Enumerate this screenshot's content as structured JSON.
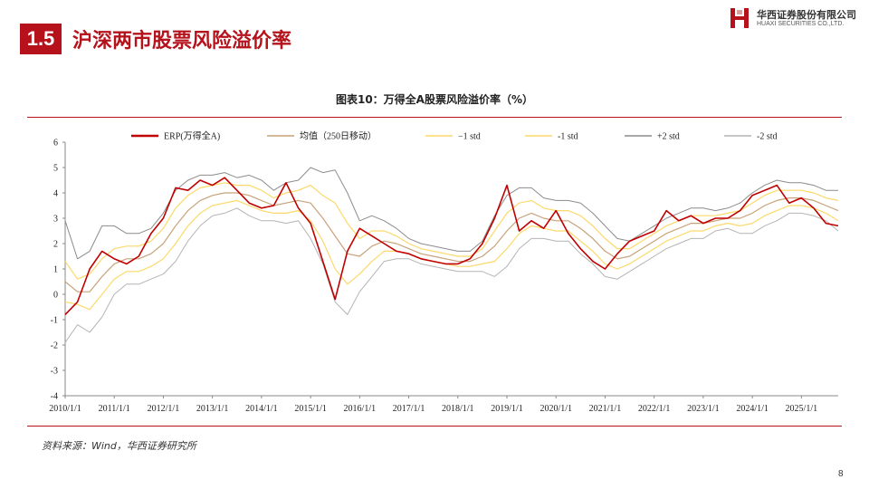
{
  "header": {
    "section_number": "1.5",
    "section_title": "沪深两市股票风险溢价率",
    "logo_cn": "华西证券股份有限公司",
    "logo_en": "HUAXI SECURITIES CO.,LTD.",
    "brand_color": "#b5121b"
  },
  "chart_caption": "图表10：万得全A股票风险溢价率（%）",
  "source_note": "资料来源：Wind，华西证券研究所",
  "page_number": "8",
  "chart_data": {
    "type": "line",
    "title": "图表10：万得全A股票风险溢价率（%）",
    "ylim": [
      -4,
      6
    ],
    "yticks": [
      "-4",
      "-3",
      "-2",
      "-1",
      "0",
      "1",
      "2",
      "3",
      "4",
      "5",
      "6"
    ],
    "xticks": [
      "2010/1/1",
      "2011/1/1",
      "2012/1/1",
      "2013/1/1",
      "2014/1/1",
      "2015/1/1",
      "2016/1/1",
      "2017/1/1",
      "2018/1/1",
      "2019/1/1",
      "2020/1/1",
      "2021/1/1",
      "2022/1/1",
      "2023/1/1",
      "2024/1/1",
      "2025/1/1"
    ],
    "x_range": [
      "2010/1/1",
      "2025/10/1"
    ],
    "grid": false,
    "legend_position": "top",
    "x": [
      2010.0,
      2010.25,
      2010.5,
      2010.75,
      2011.0,
      2011.25,
      2011.5,
      2011.75,
      2012.0,
      2012.25,
      2012.5,
      2012.75,
      2013.0,
      2013.25,
      2013.5,
      2013.75,
      2014.0,
      2014.25,
      2014.5,
      2014.75,
      2015.0,
      2015.25,
      2015.5,
      2015.75,
      2016.0,
      2016.25,
      2016.5,
      2016.75,
      2017.0,
      2017.25,
      2017.5,
      2017.75,
      2018.0,
      2018.25,
      2018.5,
      2018.75,
      2019.0,
      2019.25,
      2019.5,
      2019.75,
      2020.0,
      2020.25,
      2020.5,
      2020.75,
      2021.0,
      2021.25,
      2021.5,
      2021.75,
      2022.0,
      2022.25,
      2022.5,
      2022.75,
      2023.0,
      2023.25,
      2023.5,
      2023.75,
      2024.0,
      2024.25,
      2024.5,
      2024.75,
      2025.0,
      2025.25,
      2025.5,
      2025.75
    ],
    "series": [
      {
        "name": "ERP(万得全A)",
        "color": "#c00000",
        "width": 1.6,
        "values": [
          -0.8,
          -0.3,
          1.0,
          1.7,
          1.4,
          1.2,
          1.5,
          2.4,
          3.0,
          4.2,
          4.1,
          4.5,
          4.3,
          4.6,
          4.1,
          3.6,
          3.4,
          3.5,
          4.4,
          3.4,
          2.8,
          1.3,
          -0.2,
          1.7,
          2.6,
          2.3,
          2.0,
          1.7,
          1.6,
          1.4,
          1.3,
          1.2,
          1.2,
          1.4,
          2.0,
          3.0,
          4.3,
          2.5,
          2.9,
          2.6,
          3.3,
          2.4,
          1.8,
          1.3,
          1.0,
          1.6,
          2.1,
          2.3,
          2.5,
          3.3,
          2.9,
          3.1,
          2.8,
          3.0,
          3.0,
          3.3,
          3.9,
          4.1,
          4.3,
          3.6,
          3.8,
          3.4,
          2.8,
          2.7
        ]
      },
      {
        "name": "均值（250日移动）",
        "color": "#c8a27a",
        "width": 1.2,
        "values": [
          0.5,
          0.1,
          0.1,
          0.7,
          1.2,
          1.4,
          1.4,
          1.6,
          2.0,
          2.7,
          3.3,
          3.7,
          3.9,
          4.0,
          4.0,
          3.9,
          3.7,
          3.5,
          3.6,
          3.7,
          3.6,
          3.0,
          2.3,
          1.6,
          1.5,
          1.9,
          2.1,
          2.0,
          1.8,
          1.6,
          1.5,
          1.4,
          1.3,
          1.3,
          1.5,
          1.9,
          2.5,
          3.0,
          3.2,
          3.0,
          2.9,
          2.9,
          2.6,
          2.2,
          1.7,
          1.4,
          1.5,
          1.8,
          2.1,
          2.4,
          2.6,
          2.8,
          2.8,
          2.9,
          3.0,
          3.0,
          3.2,
          3.5,
          3.7,
          3.8,
          3.8,
          3.7,
          3.5,
          3.3
        ]
      },
      {
        "name": "−1 std",
        "color": "#fcd96a",
        "width": 1.2,
        "values": [
          1.3,
          0.6,
          0.8,
          1.4,
          1.8,
          1.9,
          1.9,
          2.1,
          2.6,
          3.4,
          3.9,
          4.2,
          4.3,
          4.4,
          4.3,
          4.3,
          4.1,
          3.8,
          4.0,
          4.1,
          4.3,
          3.9,
          3.6,
          2.8,
          2.2,
          2.5,
          2.5,
          2.3,
          2.0,
          1.8,
          1.7,
          1.6,
          1.5,
          1.5,
          1.8,
          2.5,
          3.2,
          3.6,
          3.7,
          3.4,
          3.3,
          3.3,
          3.1,
          2.7,
          2.2,
          1.8,
          1.8,
          2.1,
          2.4,
          2.7,
          2.9,
          3.1,
          3.1,
          3.1,
          3.2,
          3.3,
          3.6,
          3.9,
          4.1,
          4.1,
          4.1,
          4.0,
          3.8,
          3.7
        ]
      },
      {
        "name": "-1 std",
        "color": "#fcd96a",
        "width": 1.2,
        "values": [
          -0.3,
          -0.4,
          -0.6,
          0.0,
          0.6,
          0.9,
          0.9,
          1.1,
          1.4,
          2.0,
          2.7,
          3.2,
          3.5,
          3.6,
          3.7,
          3.5,
          3.3,
          3.2,
          3.2,
          3.3,
          2.9,
          2.1,
          1.0,
          0.4,
          0.8,
          1.3,
          1.7,
          1.7,
          1.6,
          1.4,
          1.3,
          1.2,
          1.1,
          1.1,
          1.2,
          1.3,
          1.8,
          2.4,
          2.7,
          2.6,
          2.5,
          2.5,
          2.1,
          1.7,
          1.2,
          1.0,
          1.2,
          1.5,
          1.8,
          2.1,
          2.3,
          2.5,
          2.5,
          2.7,
          2.8,
          2.7,
          2.8,
          3.1,
          3.3,
          3.5,
          3.5,
          3.4,
          3.2,
          2.9
        ]
      },
      {
        "name": "+2 std",
        "color": "#8c8c8c",
        "width": 1.0,
        "values": [
          2.9,
          1.4,
          1.7,
          2.7,
          2.7,
          2.4,
          2.4,
          2.6,
          3.2,
          4.1,
          4.5,
          4.7,
          4.7,
          4.8,
          4.6,
          4.7,
          4.5,
          4.1,
          4.4,
          4.5,
          5.0,
          4.8,
          4.9,
          4.0,
          2.9,
          3.1,
          2.9,
          2.6,
          2.2,
          2.0,
          1.9,
          1.8,
          1.7,
          1.7,
          2.1,
          3.1,
          3.9,
          4.2,
          4.2,
          3.8,
          3.7,
          3.7,
          3.6,
          3.2,
          2.7,
          2.2,
          2.1,
          2.4,
          2.7,
          3.0,
          3.2,
          3.4,
          3.4,
          3.3,
          3.4,
          3.6,
          4.0,
          4.3,
          4.5,
          4.4,
          4.4,
          4.3,
          4.1,
          4.1
        ]
      },
      {
        "name": "-2 std",
        "color": "#b4b4b4",
        "width": 1.0,
        "values": [
          -1.9,
          -1.2,
          -1.5,
          -0.9,
          0.0,
          0.4,
          0.4,
          0.6,
          0.8,
          1.3,
          2.1,
          2.7,
          3.1,
          3.2,
          3.4,
          3.1,
          2.9,
          2.9,
          2.8,
          2.9,
          2.2,
          1.2,
          -0.3,
          -0.8,
          0.1,
          0.7,
          1.3,
          1.4,
          1.4,
          1.2,
          1.1,
          1.0,
          0.9,
          0.9,
          0.9,
          0.7,
          1.1,
          1.8,
          2.2,
          2.2,
          2.1,
          2.1,
          1.6,
          1.2,
          0.7,
          0.6,
          0.9,
          1.2,
          1.5,
          1.8,
          2.0,
          2.2,
          2.2,
          2.5,
          2.6,
          2.4,
          2.4,
          2.7,
          2.9,
          3.2,
          3.2,
          3.1,
          2.9,
          2.5
        ]
      }
    ]
  }
}
